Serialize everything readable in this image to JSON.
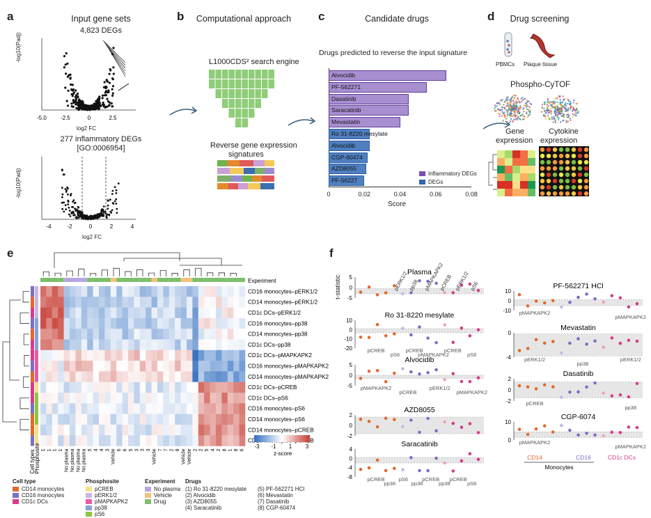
{
  "panels": {
    "a": {
      "label": "a",
      "title": "Input gene sets",
      "top_subtitle": "4,823 DEGs",
      "bottom_subtitle_1": "277 inflammatory DEGs",
      "bottom_subtitle_2": "[GO:0006954]",
      "xlabel": "log2 FC",
      "ylabel": "-log10(Padj)",
      "top_xticks": [
        "-5.0",
        "-2.5",
        "0",
        "2.5"
      ],
      "bottom_xticks": [
        "-4",
        "-2",
        "0",
        "2",
        "4"
      ]
    },
    "b": {
      "label": "b",
      "title": "Computational approach",
      "engine_label": "L1000CDS² search engine",
      "signatures_label_1": "Reverse gene expression",
      "signatures_label_2": "signatures"
    },
    "c": {
      "label": "c",
      "title": "Candidate drugs",
      "subtitle": "Drugs predicted to reverse the input signature"
    },
    "d": {
      "label": "d",
      "title": "Drug screening",
      "pbmc_label": "PBMCs",
      "plaque_label": "Plaque tissue",
      "cytof_label": "Phospho-CyTOF",
      "gene_label_1": "Gene",
      "gene_label_2": "expression",
      "cytokine_label_1": "Cytokine",
      "cytokine_label_2": "expression"
    },
    "e": {
      "label": "e",
      "experiment_label": "Experiment",
      "row_labels": [
        "CD16 monocytes–pERK1/2",
        "CD14 monocytes–pERK1/2",
        "CD1c DCs–pERK1/2",
        "CD16 monocytes–pp38",
        "CD14 monocytes–pp38",
        "CD1c DCs–pp38",
        "CD1c DCs–pMAPKAPK2",
        "CD16 monocytes–pMAPKAPK2",
        "CD14 monocytes–pMAPKAPK2",
        "CD1c DCs–pCREB",
        "CD1c DCs–pS6",
        "CD16 monocytes–pS6",
        "CD14 monocytes–pS6",
        "CD14 monocytes–pCREB",
        "CD16 monocytes–pCREB"
      ],
      "side_labels": [
        "Cell types",
        "Phosphosite"
      ],
      "col_labels": [
        "1",
        "1",
        "1",
        "1",
        "No plasma",
        "No plasma",
        "No plasma",
        "No plasma",
        "5",
        "4",
        "4",
        "3",
        "Vehicle",
        "6",
        "6",
        "5",
        "3",
        "3",
        "3",
        "Vehicle",
        "7",
        "7",
        "2",
        "8",
        "Vehicle",
        "Vehicle",
        "2",
        "2",
        "5",
        "4",
        "2",
        "8",
        "1",
        "8",
        "6"
      ],
      "zscore_label": "z-score",
      "zscore_ticks": [
        "-3",
        "-1",
        "1",
        "3"
      ]
    },
    "f": {
      "label": "f",
      "ylabel": "t-statistic",
      "left_titles": [
        "Plasma",
        "Ro 31-8220 mesylate",
        "Alvocidib",
        "AZD8055",
        "Saracatinib"
      ],
      "right_titles": [
        "PF-562271 HCl",
        "Mevastatin",
        "Dasatinib",
        "CGP-6074"
      ],
      "left_ticks": [
        [
          "5",
          "0",
          "-5"
        ],
        [
          "10",
          "0",
          "-10",
          "-20"
        ],
        [
          "5",
          "0",
          "-5"
        ],
        [
          "2",
          "0",
          "-2"
        ],
        [
          "4",
          "0",
          "-4",
          "-8"
        ]
      ],
      "right_ticks": [
        [
          "10",
          "0",
          "-10"
        ],
        [
          "0",
          "-4"
        ],
        [
          "2",
          "0",
          "-2"
        ],
        [
          "10",
          "0"
        ]
      ],
      "plasma_annotations": [
        "pERK1/2",
        "pp38",
        "pMAPKAPK2",
        "pCREB",
        "pERK1/2",
        "pS6"
      ],
      "ro_annotations": [
        "pCREB",
        "pS6",
        "pCREB",
        "pMAPKAPK2",
        "pCREB",
        "pS6"
      ],
      "alvo_annotations": [
        "pMAPKAPK2",
        "pCREB",
        "pERK1/2",
        "pMAPKAPK2"
      ],
      "sara_annotations": [
        "pCREB",
        "pp38",
        "pS6",
        "pp38",
        "pCREB",
        "pp38",
        "pCREB",
        "pS6"
      ],
      "pf_annotations": [
        "pMAPKAPK2",
        "pMAPKAPK2"
      ],
      "meva_annotations": [
        "pERK1/2",
        "pp38",
        "pERK1/2"
      ],
      "dasa_annotations": [
        "pCREB",
        "pp38"
      ],
      "cgp_annotations": [
        "pMAPKAPK2",
        "pMAPKAPK2"
      ],
      "group_labels": [
        "CD14",
        "CD16",
        "CD1c DCs"
      ],
      "monocytes_label": "Monocytes",
      "colors": {
        "cd14": "#e06a2c",
        "cd16": "#7b6fc4",
        "cd1c": "#d63c8c"
      }
    }
  },
  "chart_data": {
    "type": "bar",
    "title": "Candidate drugs",
    "subtitle": "Drugs predicted to reverse the input signature",
    "xlabel": "Score",
    "xlim": [
      0,
      0.08
    ],
    "xticks": [
      "0",
      "0.02",
      "0.04",
      "0.06",
      "0.08"
    ],
    "categories": [
      "Alvocidib",
      "PF-562271",
      "Dasatinib",
      "Saracatinib",
      "Mevastatin",
      "Ro 31-8220 mesylate",
      "Alvocidib",
      "CGP-60474",
      "AZD8055",
      "PF-56227"
    ],
    "values": [
      0.066,
      0.055,
      0.045,
      0.045,
      0.04,
      0.023,
      0.023,
      0.022,
      0.021,
      0.02
    ],
    "groups": [
      "Inflammatory DEGs",
      "Inflammatory DEGs",
      "Inflammatory DEGs",
      "Inflammatory DEGs",
      "Inflammatory DEGs",
      "DEGs",
      "DEGs",
      "DEGs",
      "DEGs",
      "DEGs"
    ],
    "legend": [
      "Inflammatory DEGs",
      "DEGs"
    ],
    "colors": {
      "Inflammatory DEGs": "#a88fd0",
      "DEGs": "#4f7fc0"
    }
  },
  "legend_e": {
    "cell_type_title": "Cell type",
    "cell_types": [
      "CD14 monocytes",
      "CD16 monocytes",
      "CD1c DCs"
    ],
    "cell_colors": [
      "#e06a2c",
      "#7b6fc4",
      "#d63c8c"
    ],
    "phosphosite_title": "Phosphosite",
    "phosphosites": [
      "pCREB",
      "pERK1/2",
      "pMAPKAPK2",
      "pp38",
      "pS6"
    ],
    "phospho_colors": [
      "#f5e08a",
      "#c8b6e2",
      "#e85aa6",
      "#8aa0d8",
      "#8cc63f"
    ],
    "experiment_title": "Experiment",
    "experiments": [
      "No plasma",
      "Vehicle",
      "Drug"
    ],
    "exp_colors": [
      "#b7a7df",
      "#f4c27a",
      "#7dbf6a"
    ],
    "drugs_title": "Drugs",
    "drugs_col1": [
      "(1) Ro 31-8220 mesylate",
      "(2) Alvocidib",
      "(3) AZD8055",
      "(4) Saracatinib"
    ],
    "drugs_col2": [
      "(5) PF-562271 HCl",
      "(6) Mevastatin",
      "(7) Dasatinib",
      "(8) CGP-60474"
    ]
  }
}
